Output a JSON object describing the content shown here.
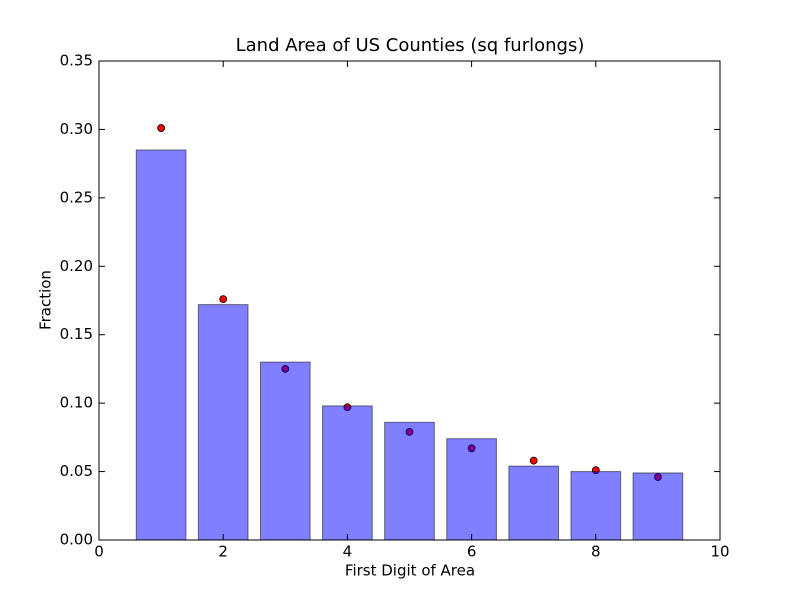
{
  "chart_data": {
    "type": "bar",
    "title": "Land Area of US Counties (sq furlongs)",
    "xlabel": "First Digit of Area",
    "ylabel": "Fraction",
    "x": [
      1,
      2,
      3,
      4,
      5,
      6,
      7,
      8,
      9
    ],
    "values": [
      0.285,
      0.172,
      0.13,
      0.098,
      0.086,
      0.074,
      0.054,
      0.05,
      0.049
    ],
    "color": "#0000ff",
    "bar_width": 0.8,
    "points": {
      "values": [
        0.301,
        0.176,
        0.125,
        0.097,
        0.079,
        0.067,
        0.058,
        0.051,
        0.046
      ],
      "color": "#ff0000"
    },
    "xlim": [
      0,
      10
    ],
    "xticks": [
      0,
      2,
      4,
      6,
      8,
      10
    ],
    "ylim": [
      0,
      0.35
    ],
    "yticks": [
      {
        "value": 0,
        "label": "0.00"
      },
      {
        "value": 0.05,
        "label": "0.05"
      },
      {
        "value": 0.1,
        "label": "0.10"
      },
      {
        "value": 0.15,
        "label": "0.15"
      },
      {
        "value": 0.2,
        "label": "0.20"
      },
      {
        "value": 0.25,
        "label": "0.25"
      },
      {
        "value": 0.3,
        "label": "0.30"
      },
      {
        "value": 0.35,
        "label": "0.35"
      }
    ],
    "grid": false
  }
}
